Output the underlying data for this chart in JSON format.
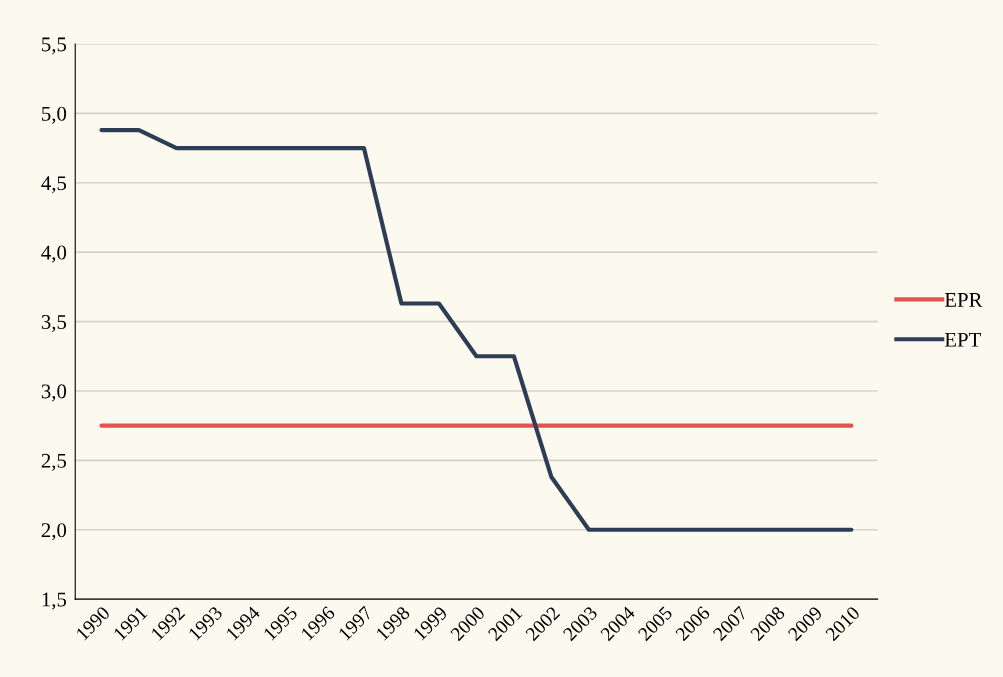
{
  "chart_data": {
    "type": "line",
    "categories": [
      "1990",
      "1991",
      "1992",
      "1993",
      "1994",
      "1995",
      "1996",
      "1997",
      "1998",
      "1999",
      "2000",
      "2001",
      "2002",
      "2003",
      "2004",
      "2005",
      "2006",
      "2007",
      "2008",
      "2009",
      "2010"
    ],
    "series": [
      {
        "name": "EPR",
        "color": "#e05552",
        "values": [
          2.75,
          2.75,
          2.75,
          2.75,
          2.75,
          2.75,
          2.75,
          2.75,
          2.75,
          2.75,
          2.75,
          2.75,
          2.75,
          2.75,
          2.75,
          2.75,
          2.75,
          2.75,
          2.75,
          2.75,
          2.75
        ]
      },
      {
        "name": "EPT",
        "color": "#2e3d56",
        "values": [
          4.88,
          4.88,
          4.75,
          4.75,
          4.75,
          4.75,
          4.75,
          4.75,
          3.63,
          3.63,
          3.25,
          3.25,
          2.38,
          2.0,
          2.0,
          2.0,
          2.0,
          2.0,
          2.0,
          2.0,
          2.0
        ]
      }
    ],
    "ylim": [
      1.5,
      5.5
    ],
    "yticks": [
      {
        "value": 1.5,
        "label": "1,5"
      },
      {
        "value": 2.0,
        "label": "2,0"
      },
      {
        "value": 2.5,
        "label": "2,5"
      },
      {
        "value": 3.0,
        "label": "3,0"
      },
      {
        "value": 3.5,
        "label": "3,5"
      },
      {
        "value": 4.0,
        "label": "4,0"
      },
      {
        "value": 4.5,
        "label": "4,5"
      },
      {
        "value": 5.0,
        "label": "5,0"
      },
      {
        "value": 5.5,
        "label": "5,5"
      }
    ],
    "grid": "y",
    "legend": "right",
    "marker": "none",
    "line_style": "solid"
  }
}
